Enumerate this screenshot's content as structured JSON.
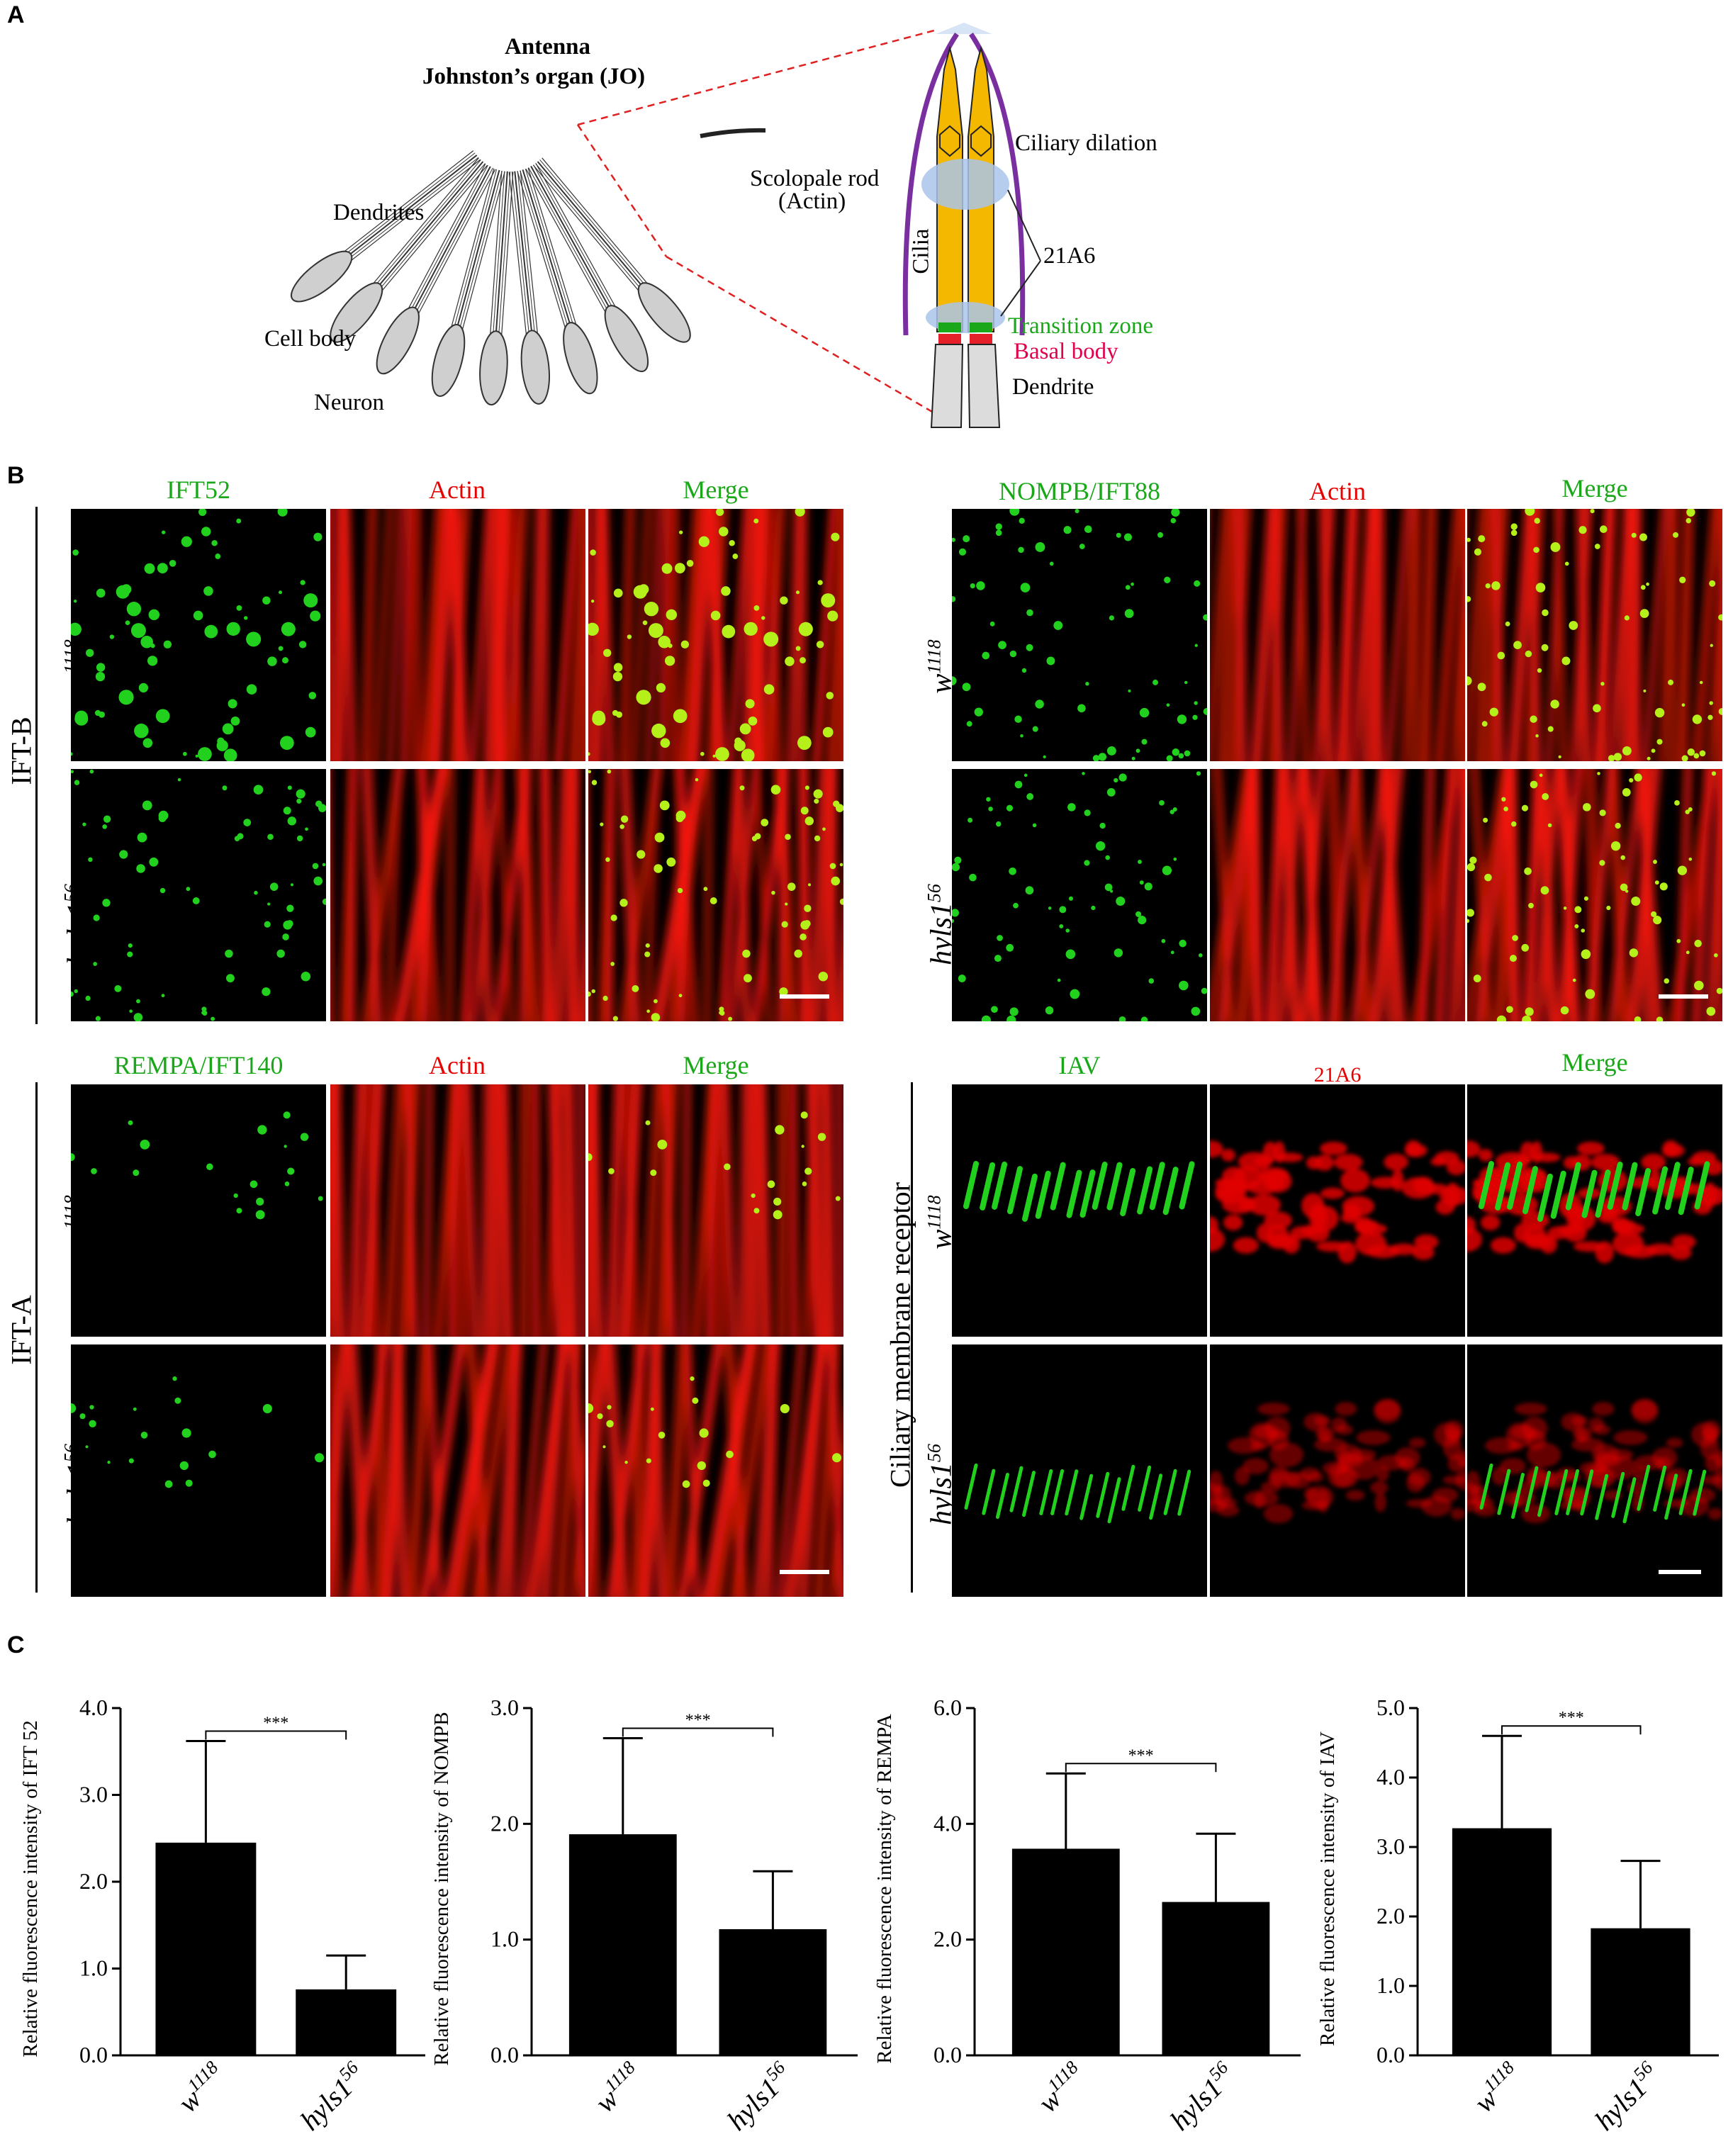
{
  "panelA": {
    "letter": "A",
    "title_line1": "Antenna",
    "title_line2": "Johnston’s organ (JO)",
    "dendrites": "Dendrites",
    "cell_body": "Cell body",
    "neuron": "Neuron",
    "scolopale_rod_1": "Scolopale rod",
    "scolopale_rod_2": "(Actin)",
    "ciliary_dilation": "Ciliary dilation",
    "cilia": "Cilia",
    "ab_21a6": "21A6",
    "transition_zone": "Transition zone",
    "basal_body": "Basal body",
    "dendrite": "Dendrite",
    "colors": {
      "cilia": "#f5b800",
      "rod": "#a9c4ea",
      "sheath": "#7a2fa0",
      "tz": "#1aa81a",
      "bb": "#e6202a"
    }
  },
  "panelB": {
    "letter": "B",
    "group_ift_b": "IFT-B",
    "group_ift_a": "IFT-A",
    "group_cmr": "Ciliary membrane receptor",
    "genotype_wt_base": "w",
    "genotype_wt_sup": "1118",
    "genotype_mut_base": "hyls1",
    "genotype_mut_sup": "56",
    "quad1": {
      "c1": "IFT52",
      "c2": "Actin",
      "c3": "Merge"
    },
    "quad2": {
      "c1": "NOMPB/IFT88",
      "c2": "Actin",
      "c3": "Merge"
    },
    "quad3": {
      "c1": "REMPA/IFT140",
      "c2": "Actin",
      "c3": "Merge"
    },
    "quad4": {
      "c1": "IAV",
      "c2": "21A6",
      "c3": "Merge"
    }
  },
  "panelC": {
    "letter": "C",
    "chart_data": [
      {
        "type": "bar",
        "title": "",
        "xlabel": "",
        "ylabel": "Relative fluorescence intensity of IFT 52",
        "categories": [
          "w1118",
          "hyls156"
        ],
        "values": [
          2.45,
          0.76
        ],
        "errors": [
          1.17,
          0.39
        ],
        "ylim": [
          0,
          4.0
        ],
        "yticks": [
          "0.0",
          "1.0",
          "2.0",
          "3.0",
          "4.0"
        ],
        "significance": "***"
      },
      {
        "type": "bar",
        "title": "",
        "xlabel": "",
        "ylabel": "Relative fluorescence intensity of NOMPB",
        "categories": [
          "w1118",
          "hyls156"
        ],
        "values": [
          1.91,
          1.09
        ],
        "errors": [
          0.83,
          0.5
        ],
        "ylim": [
          0,
          3.0
        ],
        "yticks": [
          "0.0",
          "1.0",
          "2.0",
          "3.0"
        ],
        "significance": "***"
      },
      {
        "type": "bar",
        "title": "",
        "xlabel": "",
        "ylabel": "Relative fluorescence intensity of REMPA",
        "categories": [
          "w1118",
          "hyls156"
        ],
        "values": [
          3.57,
          2.65
        ],
        "errors": [
          1.3,
          1.18
        ],
        "ylim": [
          0,
          6.0
        ],
        "yticks": [
          "0.0",
          "2.0",
          "4.0",
          "6.0"
        ],
        "significance": "***"
      },
      {
        "type": "bar",
        "title": "",
        "xlabel": "",
        "ylabel": "Relative fluorescence intensity of IAV",
        "categories": [
          "w1118",
          "hyls156"
        ],
        "values": [
          3.27,
          1.83
        ],
        "errors": [
          1.33,
          0.97
        ],
        "ylim": [
          0,
          5.0
        ],
        "yticks": [
          "0.0",
          "1.0",
          "2.0",
          "3.0",
          "4.0",
          "5.0"
        ],
        "significance": "***"
      }
    ]
  }
}
